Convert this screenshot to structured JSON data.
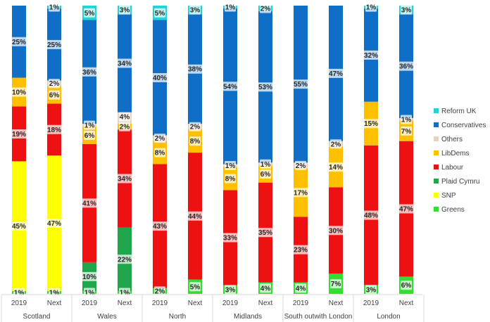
{
  "chart_data": {
    "type": "bar",
    "stacked": true,
    "normalized": true,
    "ylim": [
      0,
      100
    ],
    "grid": false,
    "legend_position": "right",
    "groups": [
      "Scotland",
      "Wales",
      "North",
      "Midlands",
      "South outwith London",
      "London"
    ],
    "bar_labels": [
      "2019",
      "Next"
    ],
    "series": [
      {
        "name": "Greens",
        "color": "#33dd33",
        "values": [
          1,
          1,
          1,
          1,
          2,
          5,
          3,
          4,
          4,
          7,
          3,
          6
        ]
      },
      {
        "name": "SNP",
        "color": "#ffff00",
        "values": [
          45,
          47,
          0,
          0,
          0,
          0,
          0,
          0,
          0,
          0,
          0,
          0
        ]
      },
      {
        "name": "Plaid Cymru",
        "color": "#1fa64a",
        "values": [
          0,
          0,
          10,
          22,
          0,
          0,
          0,
          0,
          0,
          0,
          0,
          0
        ]
      },
      {
        "name": "Labour",
        "color": "#ee1111",
        "values": [
          19,
          18,
          41,
          34,
          43,
          44,
          33,
          35,
          23,
          30,
          48,
          47
        ]
      },
      {
        "name": "LibDems",
        "color": "#ffc000",
        "values": [
          10,
          6,
          6,
          2,
          8,
          8,
          8,
          6,
          17,
          14,
          15,
          7
        ]
      },
      {
        "name": "Others",
        "color": "#e6d3c3",
        "values": [
          0,
          2,
          1,
          4,
          2,
          2,
          1,
          1,
          2,
          2,
          0,
          1
        ]
      },
      {
        "name": "Conservatives",
        "color": "#0f6fc6",
        "values": [
          25,
          25,
          36,
          34,
          40,
          38,
          54,
          53,
          55,
          47,
          32,
          36
        ]
      },
      {
        "name": "Reform UK",
        "color": "#22d3d3",
        "values": [
          0,
          1,
          5,
          3,
          5,
          3,
          1,
          2,
          0,
          0,
          1,
          3
        ]
      }
    ],
    "data_labels": [
      [
        "1%",
        "45%",
        "19%",
        "10%",
        "25%"
      ],
      [
        "1%",
        "47%",
        "18%",
        "6%",
        "2%",
        "25%",
        "1%"
      ],
      [
        "1%",
        "10%",
        "41%",
        "6%",
        "1%",
        "36%",
        "5%"
      ],
      [
        "1%",
        "22%",
        "34%",
        "2%",
        "4%",
        "34%",
        "3%"
      ],
      [
        "2%",
        "43%",
        "8%",
        "2%",
        "40%",
        "5%"
      ],
      [
        "5%",
        "44%",
        "8%",
        "2%",
        "38%",
        "3%"
      ],
      [
        "3%",
        "33%",
        "8%",
        "1%",
        "54%",
        "1%"
      ],
      [
        "4%",
        "35%",
        "6%",
        "1%",
        "53%",
        "2%"
      ],
      [
        "4%",
        "23%",
        "17%",
        "2%",
        "55%"
      ],
      [
        "7%",
        "30%",
        "14%",
        "2%",
        "47%"
      ],
      [
        "3%",
        "48%",
        "15%",
        "32%",
        "1%"
      ],
      [
        "6%",
        "47%",
        "7%",
        "1%",
        "36%",
        "3%"
      ]
    ],
    "legend": [
      "Reform UK",
      "Conservatives",
      "Others",
      "LibDems",
      "Labour",
      "Plaid Cymru",
      "SNP",
      "Greens"
    ]
  }
}
